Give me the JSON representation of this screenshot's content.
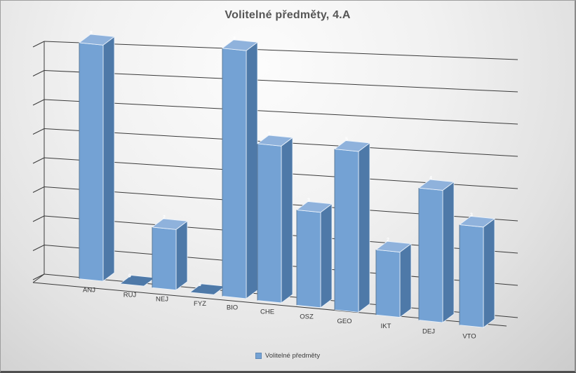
{
  "title": "Volitelné předměty, 4.A",
  "legend": {
    "label": "Volitelné předměty",
    "swatch_color": "#74A2D4",
    "position": "bottom"
  },
  "chart_data": {
    "type": "bar",
    "variant": "3d-column",
    "title": "Volitelné předměty, 4.A",
    "categories": [
      "ANJ",
      "RUJ",
      "NEJ",
      "FYZ",
      "BIO",
      "CHE",
      "OSZ",
      "GEO",
      "IKT",
      "DEJ",
      "VTO"
    ],
    "series": [
      {
        "name": "Volitelné předměty",
        "values": [
          8,
          0,
          2,
          0,
          8,
          5,
          3,
          5,
          2,
          4,
          3
        ]
      }
    ],
    "ylabel": "",
    "xlabel": "",
    "ylim": [
      0,
      8
    ],
    "major_unit": 1,
    "gridlines": true,
    "gridline_count": 9,
    "legend_position": "bottom",
    "data_labels": true,
    "colors": {
      "bar_front": "#74A2D4",
      "bar_side": "#4E79A8",
      "bar_top": "#8FB2DC",
      "bar_edge_light": "#ECF3FB",
      "bar_edge_dark": "#3C5F82",
      "gridline": "#3A3A3A",
      "title": "#565656",
      "category_label": "#353535",
      "legend_text": "#3D3D3D",
      "data_label": "#FFFFFF"
    }
  }
}
